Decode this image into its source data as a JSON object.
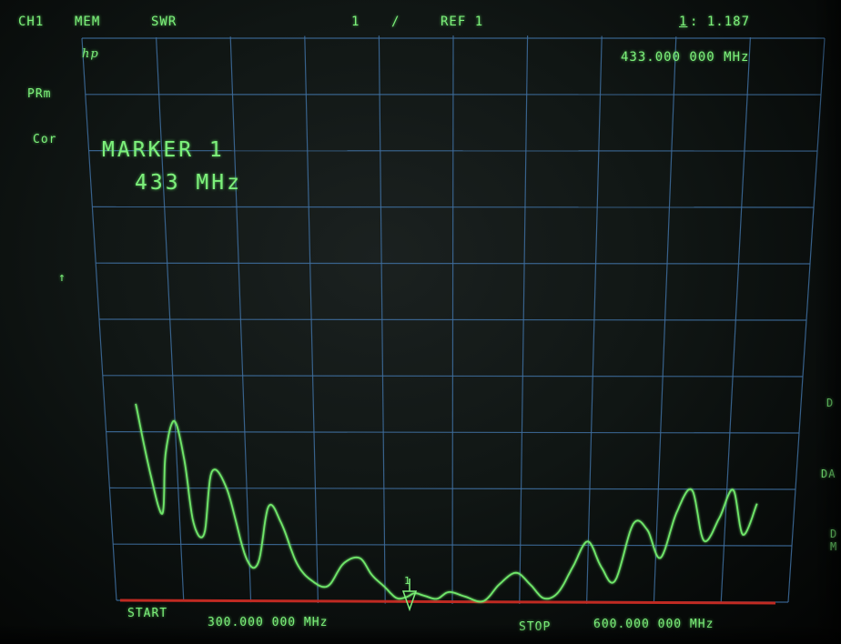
{
  "status_bar": {
    "channel": "CH1",
    "memory": "MEM",
    "format": "SWR",
    "scale": "1",
    "scale_unit": "/",
    "reference": "REF 1",
    "marker_index": "1",
    "marker_readout": ": 1.187"
  },
  "marker_frequency_readout": "433.000 000 MHz",
  "logo": "hp",
  "left_annotations": {
    "power_ranging": "PRm",
    "correction": "Cor",
    "reference_arrow": "↑"
  },
  "marker_box": {
    "title": "MARKER 1",
    "value": "433 MHz"
  },
  "marker_flag": "1",
  "sweep": {
    "start_label": "START",
    "start_value": "300.000 000 MHz",
    "stop_label": "STOP",
    "stop_value": "600.000 000 MHz"
  },
  "right_edge_labels": [
    "D",
    "DA",
    "D",
    "M"
  ],
  "colors": {
    "trace": "#6fe66a",
    "grid": "#3f6fa0",
    "text": "#7df07b",
    "baseline": "#c02a22",
    "background": "#111714"
  },
  "chart_data": {
    "type": "line",
    "x_unit": "MHz",
    "y_unit": "SWR",
    "xlim": [
      300,
      600
    ],
    "ylim": [
      1,
      11
    ],
    "marker": {
      "x": 433,
      "y": 1.187
    },
    "series": [
      {
        "x": [
          300,
          305,
          310,
          313,
          318,
          322,
          325,
          330,
          335,
          342,
          350,
          356,
          362,
          368,
          375,
          382,
          390,
          398,
          406,
          412,
          418,
          424,
          429,
          433,
          438,
          444,
          450,
          458,
          467,
          475,
          483,
          490,
          497,
          504,
          511,
          518,
          525,
          532,
          540,
          547,
          554,
          561,
          568,
          575,
          582,
          588,
          594,
          600
        ],
        "y": [
          4.5,
          3.3,
          2.55,
          3.6,
          4.2,
          3.5,
          2.4,
          2.2,
          3.3,
          3.0,
          1.8,
          1.7,
          2.7,
          2.4,
          1.7,
          1.4,
          1.3,
          1.7,
          1.8,
          1.5,
          1.3,
          1.1,
          1.12,
          1.187,
          1.14,
          1.09,
          1.21,
          1.13,
          1.05,
          1.35,
          1.55,
          1.35,
          1.1,
          1.2,
          1.65,
          2.1,
          1.65,
          1.4,
          2.4,
          2.3,
          1.8,
          2.6,
          3.0,
          2.1,
          2.5,
          3.0,
          2.2,
          2.75
        ]
      }
    ]
  }
}
